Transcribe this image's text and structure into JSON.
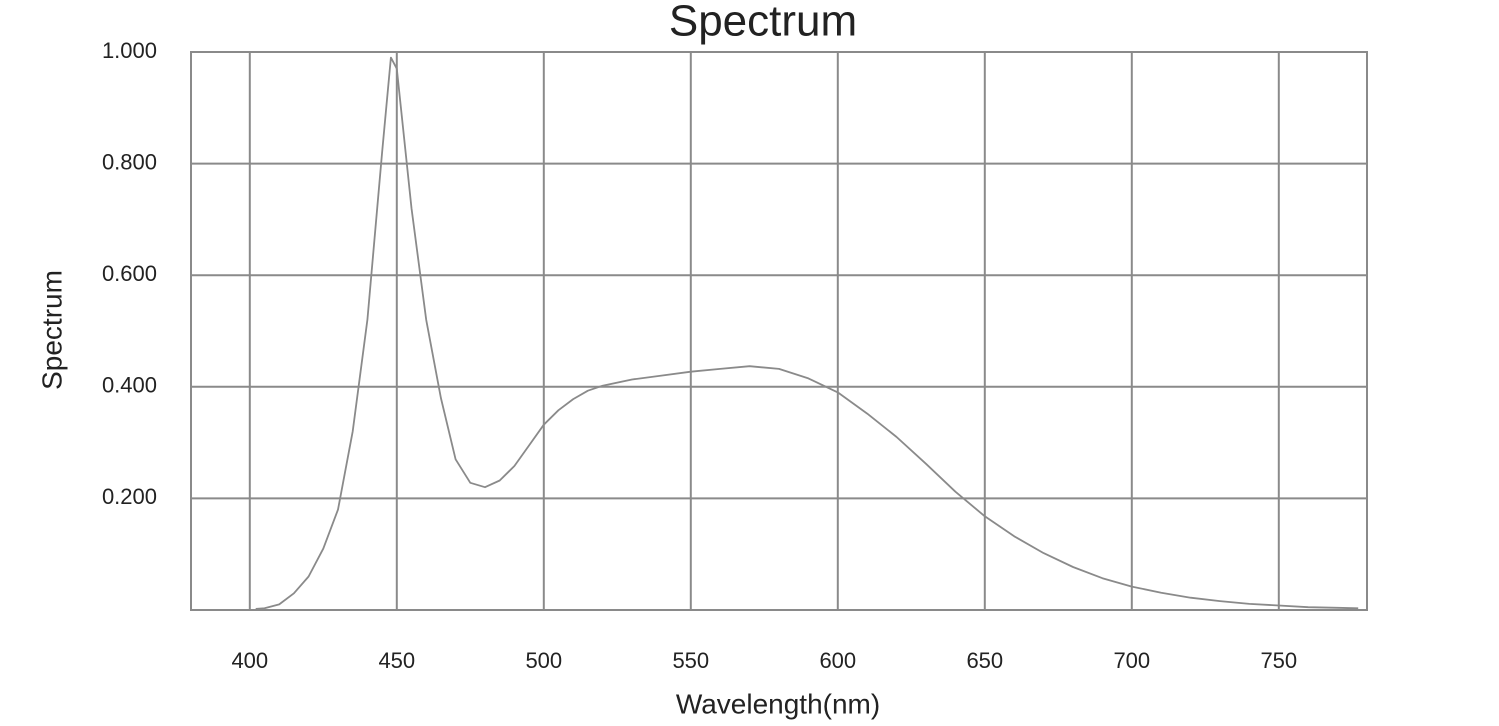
{
  "chart_data": {
    "type": "line",
    "title": "Spectrum",
    "x_label": "Wavelength(nm)",
    "y_label": "Spectrum",
    "x": [
      402,
      405,
      410,
      415,
      420,
      425,
      430,
      435,
      440,
      445,
      448,
      450,
      455,
      460,
      465,
      470,
      475,
      480,
      485,
      490,
      495,
      500,
      505,
      510,
      515,
      520,
      530,
      540,
      550,
      560,
      570,
      580,
      590,
      600,
      610,
      620,
      630,
      640,
      650,
      660,
      670,
      680,
      690,
      700,
      710,
      720,
      730,
      740,
      750,
      760,
      770,
      777
    ],
    "series": [
      {
        "name": "Spectrum",
        "color": "#8a8a8a",
        "values": [
          0.002,
          0.003,
          0.01,
          0.03,
          0.06,
          0.11,
          0.18,
          0.32,
          0.52,
          0.82,
          0.99,
          0.97,
          0.72,
          0.52,
          0.38,
          0.27,
          0.228,
          0.22,
          0.232,
          0.258,
          0.295,
          0.332,
          0.358,
          0.378,
          0.393,
          0.402,
          0.413,
          0.42,
          0.427,
          0.432,
          0.437,
          0.432,
          0.415,
          0.39,
          0.352,
          0.31,
          0.262,
          0.212,
          0.168,
          0.132,
          0.102,
          0.077,
          0.057,
          0.042,
          0.031,
          0.022,
          0.016,
          0.011,
          0.008,
          0.005,
          0.004,
          0.003
        ]
      }
    ],
    "xlim": [
      380,
      780
    ],
    "xticks": [
      400,
      450,
      500,
      550,
      600,
      650,
      700,
      750
    ],
    "ylim": [
      0,
      1
    ],
    "yticks": [
      {
        "value": 0.2,
        "label": "0.200"
      },
      {
        "value": 0.4,
        "label": "0.400"
      },
      {
        "value": 0.6,
        "label": "0.600"
      },
      {
        "value": 0.8,
        "label": "0.800"
      },
      {
        "value": 1,
        "label": "1.000"
      }
    ],
    "grid": true
  }
}
